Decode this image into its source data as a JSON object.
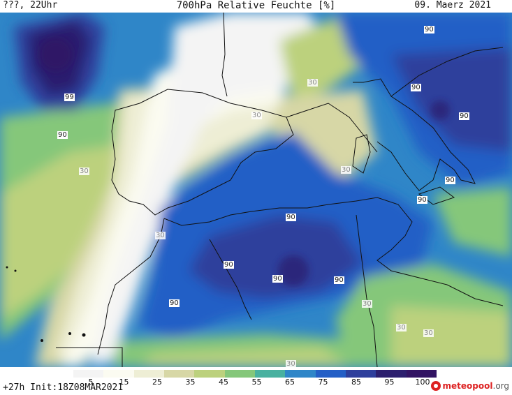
{
  "header": {
    "left": "???, 22Uhr",
    "title": "700hPa Relative Feuchte [%]",
    "date": "09. Maerz 2021"
  },
  "map": {
    "region": "Iberia, Western Mediterranean, North Africa",
    "contour_labels": [
      "99",
      "90",
      "30",
      "90",
      "90",
      "30",
      "90",
      "90",
      "90",
      "90",
      "90",
      "90",
      "90",
      "90",
      "30",
      "30",
      "30",
      "30",
      "30",
      "30",
      "30",
      "90",
      "90"
    ]
  },
  "legend": {
    "ticks": [
      "5",
      "15",
      "25",
      "35",
      "45",
      "55",
      "65",
      "75",
      "85",
      "95",
      "100"
    ],
    "colors": [
      "#f4f4f4",
      "#fbfbf1",
      "#eeeed5",
      "#d7d7a6",
      "#bcd17d",
      "#85c77a",
      "#49b1a0",
      "#2f86c8",
      "#245fc6",
      "#2e3f9c",
      "#2c1f6e",
      "#321463"
    ]
  },
  "footer": {
    "init": "+27h Init:18Z08MAR2021",
    "brand": "meteo",
    "brand_accent": "pool",
    "brand_suffix": ".org"
  }
}
